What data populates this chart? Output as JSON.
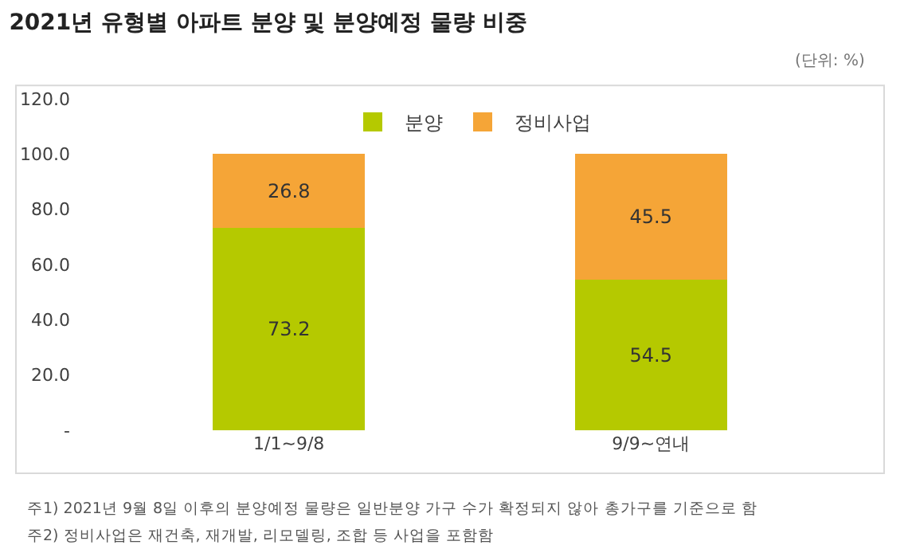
{
  "chart_data": {
    "type": "bar",
    "stacked": true,
    "title": "2021년 유형별 아파트 분양 및 분양예정 물량 비중",
    "categories": [
      "1/1~9/8",
      "9/9~연내"
    ],
    "series": [
      {
        "name": "분양",
        "color": "#b5c900",
        "values": [
          73.2,
          54.5
        ]
      },
      {
        "name": "정비사업",
        "color": "#f5a537",
        "values": [
          26.8,
          45.5
        ]
      }
    ],
    "ylim": [
      0,
      120
    ],
    "yticks": [
      {
        "value": 0,
        "label": "-"
      },
      {
        "value": 20,
        "label": "20.0"
      },
      {
        "value": 40,
        "label": "40.0"
      },
      {
        "value": 60,
        "label": "60.0"
      },
      {
        "value": 80,
        "label": "80.0"
      },
      {
        "value": 100,
        "label": "100.0"
      },
      {
        "value": 120,
        "label": "120.0"
      }
    ],
    "legend": "top",
    "data_labels": true,
    "annotations": [
      "(단위: %)",
      "주1) 2021년 9월 8일 이후의 분양예정 물량은 일반분양 가구 수가 확정되지 않아 총가구를 기준으로 함",
      "주2) 정비사업은 재건축, 재개발, 리모델링, 조합 등 사업을 포함함"
    ]
  }
}
